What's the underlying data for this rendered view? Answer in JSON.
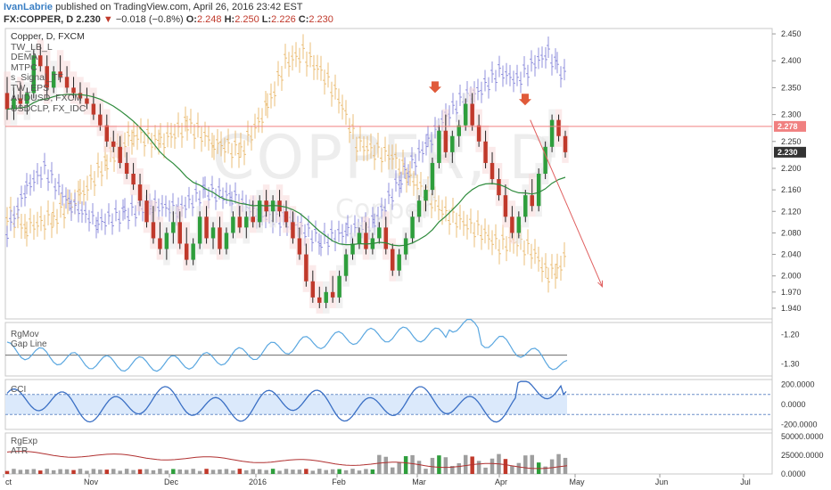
{
  "header": {
    "author": "IvanLabrie",
    "published": "published on TradingView.com, April 26, 2016 23:42 EST",
    "symbol": "FX:COPPER, D",
    "last": "2.230",
    "change": "−0.018 (−0.8%)",
    "o_label": "O:",
    "o_val": "2.248",
    "h_label": "H:",
    "h_val": "2.250",
    "l_label": "L:",
    "l_val": "2.226",
    "c_label": "C:",
    "c_val": "2.230"
  },
  "legend": {
    "symbol": "Copper, D, FXCM",
    "items": [
      "TW_LB_L",
      "DEMA",
      "MTPC",
      "s_Signal_TF",
      "TW_EPS",
      "AUDUSD, FXCM",
      "USDCLP, FX_IDC"
    ]
  },
  "watermark": {
    "main": "COPPER, D",
    "sub": "Copper"
  },
  "panes": {
    "rgmov": {
      "labels": [
        "RgMov",
        "Gap Line"
      ]
    },
    "cci": {
      "labels": [
        "CCI"
      ]
    },
    "rgexp": {
      "labels": [
        "RgExp",
        "ATR"
      ]
    }
  },
  "colors": {
    "up": "#2e9e3c",
    "down": "#c0392b",
    "audusd": "#e8b463",
    "usdclp": "#8080d8",
    "dema": "#2e8b3c",
    "rgmov": "#5aa7e0",
    "cci": "#3a6fc4",
    "cci_band": "#dbe9fb",
    "volume": "#9e9e9e",
    "atr": "#b03030",
    "target": "#e06060",
    "signal": "#e05a3a"
  },
  "chart_data": [
    {
      "type": "candlestick",
      "title": "Copper, D, FXCM",
      "ylim": [
        1.92,
        2.46
      ],
      "yticks": [
        "2.450",
        "2.400",
        "2.350",
        "2.300",
        "2.250",
        "2.200",
        "2.160",
        "2.120",
        "2.080",
        "2.040",
        "2.000",
        "1.970",
        "1.940"
      ],
      "xticks": [
        "ct",
        "Nov",
        "Dec",
        "2016",
        "Feb",
        "Mar",
        "Apr",
        "May",
        "Jun",
        "Jul"
      ],
      "x_range": [
        "2015-10-01",
        "2016-07-25"
      ],
      "price_tags": [
        {
          "value": "2.278",
          "color": "#f08080"
        },
        {
          "value": "2.230",
          "color": "#333333"
        }
      ],
      "resistance_line": 2.278,
      "projection": [
        {
          "date": "2016-04-22",
          "price": 2.29
        },
        {
          "date": "2016-05-20",
          "price": 1.98
        }
      ],
      "signals": [
        {
          "date": "2016-03-16",
          "price": 2.345
        },
        {
          "date": "2016-04-20",
          "price": 2.322
        }
      ],
      "candles_ohlc": [
        [
          2.34,
          2.37,
          2.29,
          2.31
        ],
        [
          2.31,
          2.35,
          2.29,
          2.33
        ],
        [
          2.33,
          2.36,
          2.31,
          2.32
        ],
        [
          2.32,
          2.35,
          2.3,
          2.34
        ],
        [
          2.34,
          2.42,
          2.33,
          2.41
        ],
        [
          2.41,
          2.43,
          2.38,
          2.39
        ],
        [
          2.39,
          2.41,
          2.33,
          2.35
        ],
        [
          2.35,
          2.39,
          2.34,
          2.38
        ],
        [
          2.38,
          2.41,
          2.36,
          2.37
        ],
        [
          2.37,
          2.39,
          2.34,
          2.35
        ],
        [
          2.35,
          2.37,
          2.33,
          2.34
        ],
        [
          2.34,
          2.36,
          2.32,
          2.33
        ],
        [
          2.33,
          2.35,
          2.31,
          2.32
        ],
        [
          2.32,
          2.34,
          2.29,
          2.3
        ],
        [
          2.3,
          2.32,
          2.27,
          2.28
        ],
        [
          2.28,
          2.3,
          2.24,
          2.25
        ],
        [
          2.25,
          2.27,
          2.23,
          2.24
        ],
        [
          2.24,
          2.26,
          2.2,
          2.21
        ],
        [
          2.21,
          2.23,
          2.18,
          2.19
        ],
        [
          2.19,
          2.21,
          2.16,
          2.17
        ],
        [
          2.17,
          2.19,
          2.13,
          2.14
        ],
        [
          2.14,
          2.16,
          2.09,
          2.1
        ],
        [
          2.1,
          2.13,
          2.06,
          2.07
        ],
        [
          2.07,
          2.1,
          2.04,
          2.05
        ],
        [
          2.05,
          2.09,
          2.03,
          2.08
        ],
        [
          2.08,
          2.12,
          2.06,
          2.1
        ],
        [
          2.1,
          2.12,
          2.05,
          2.06
        ],
        [
          2.06,
          2.09,
          2.02,
          2.03
        ],
        [
          2.03,
          2.07,
          2.02,
          2.06
        ],
        [
          2.06,
          2.12,
          2.05,
          2.11
        ],
        [
          2.11,
          2.13,
          2.06,
          2.07
        ],
        [
          2.07,
          2.1,
          2.05,
          2.09
        ],
        [
          2.09,
          2.11,
          2.04,
          2.05
        ],
        [
          2.05,
          2.09,
          2.04,
          2.08
        ],
        [
          2.08,
          2.12,
          2.07,
          2.11
        ],
        [
          2.11,
          2.13,
          2.08,
          2.09
        ],
        [
          2.09,
          2.12,
          2.07,
          2.11
        ],
        [
          2.11,
          2.14,
          2.09,
          2.1
        ],
        [
          2.1,
          2.15,
          2.09,
          2.14
        ],
        [
          2.14,
          2.16,
          2.11,
          2.12
        ],
        [
          2.12,
          2.15,
          2.1,
          2.14
        ],
        [
          2.14,
          2.16,
          2.11,
          2.12
        ],
        [
          2.12,
          2.14,
          2.09,
          2.1
        ],
        [
          2.1,
          2.12,
          2.06,
          2.07
        ],
        [
          2.07,
          2.09,
          2.03,
          2.04
        ],
        [
          2.04,
          2.06,
          1.98,
          1.99
        ],
        [
          1.99,
          2.01,
          1.95,
          1.96
        ],
        [
          1.96,
          1.98,
          1.94,
          1.95
        ],
        [
          1.95,
          1.98,
          1.94,
          1.97
        ],
        [
          1.97,
          2.0,
          1.95,
          1.96
        ],
        [
          1.96,
          2.01,
          1.95,
          2.0
        ],
        [
          2.0,
          2.05,
          1.99,
          2.04
        ],
        [
          2.04,
          2.07,
          2.03,
          2.06
        ],
        [
          2.06,
          2.09,
          2.05,
          2.08
        ],
        [
          2.08,
          2.1,
          2.04,
          2.05
        ],
        [
          2.05,
          2.08,
          2.04,
          2.07
        ],
        [
          2.07,
          2.1,
          2.06,
          2.09
        ],
        [
          2.09,
          2.11,
          2.04,
          2.05
        ],
        [
          2.05,
          2.06,
          2.0,
          2.01
        ],
        [
          2.01,
          2.05,
          2.0,
          2.04
        ],
        [
          2.04,
          2.08,
          2.03,
          2.07
        ],
        [
          2.07,
          2.12,
          2.06,
          2.11
        ],
        [
          2.11,
          2.15,
          2.1,
          2.14
        ],
        [
          2.14,
          2.17,
          2.12,
          2.16
        ],
        [
          2.16,
          2.22,
          2.15,
          2.21
        ],
        [
          2.21,
          2.28,
          2.2,
          2.27
        ],
        [
          2.27,
          2.3,
          2.22,
          2.23
        ],
        [
          2.23,
          2.27,
          2.21,
          2.26
        ],
        [
          2.26,
          2.29,
          2.24,
          2.28
        ],
        [
          2.28,
          2.33,
          2.27,
          2.32
        ],
        [
          2.32,
          2.34,
          2.27,
          2.28
        ],
        [
          2.28,
          2.3,
          2.24,
          2.25
        ],
        [
          2.25,
          2.27,
          2.2,
          2.21
        ],
        [
          2.21,
          2.23,
          2.17,
          2.18
        ],
        [
          2.18,
          2.2,
          2.14,
          2.15
        ],
        [
          2.15,
          2.17,
          2.1,
          2.11
        ],
        [
          2.11,
          2.13,
          2.07,
          2.08
        ],
        [
          2.08,
          2.12,
          2.07,
          2.11
        ],
        [
          2.11,
          2.16,
          2.1,
          2.15
        ],
        [
          2.15,
          2.18,
          2.12,
          2.13
        ],
        [
          2.13,
          2.2,
          2.12,
          2.19
        ],
        [
          2.19,
          2.25,
          2.18,
          2.24
        ],
        [
          2.24,
          2.3,
          2.23,
          2.29
        ],
        [
          2.29,
          2.3,
          2.25,
          2.26
        ],
        [
          2.26,
          2.27,
          2.22,
          2.23
        ]
      ]
    },
    {
      "type": "line",
      "title": "RgMov",
      "series_name": "Gap Line",
      "yticks": [
        "-1.20",
        "-1.30"
      ],
      "ylim": [
        -1.34,
        -1.16
      ],
      "gap_line": -1.27
    },
    {
      "type": "line",
      "title": "CCI",
      "yticks": [
        "200.0000",
        "0.0000",
        "-200.0000"
      ],
      "ylim": [
        -250,
        250
      ],
      "band": [
        -100,
        100
      ]
    },
    {
      "type": "bar",
      "title": "RgExp",
      "series_name": "ATR",
      "yticks": [
        "50000.0000",
        "25000.0000",
        "0.0000"
      ],
      "ylim": [
        0,
        55000
      ]
    }
  ]
}
